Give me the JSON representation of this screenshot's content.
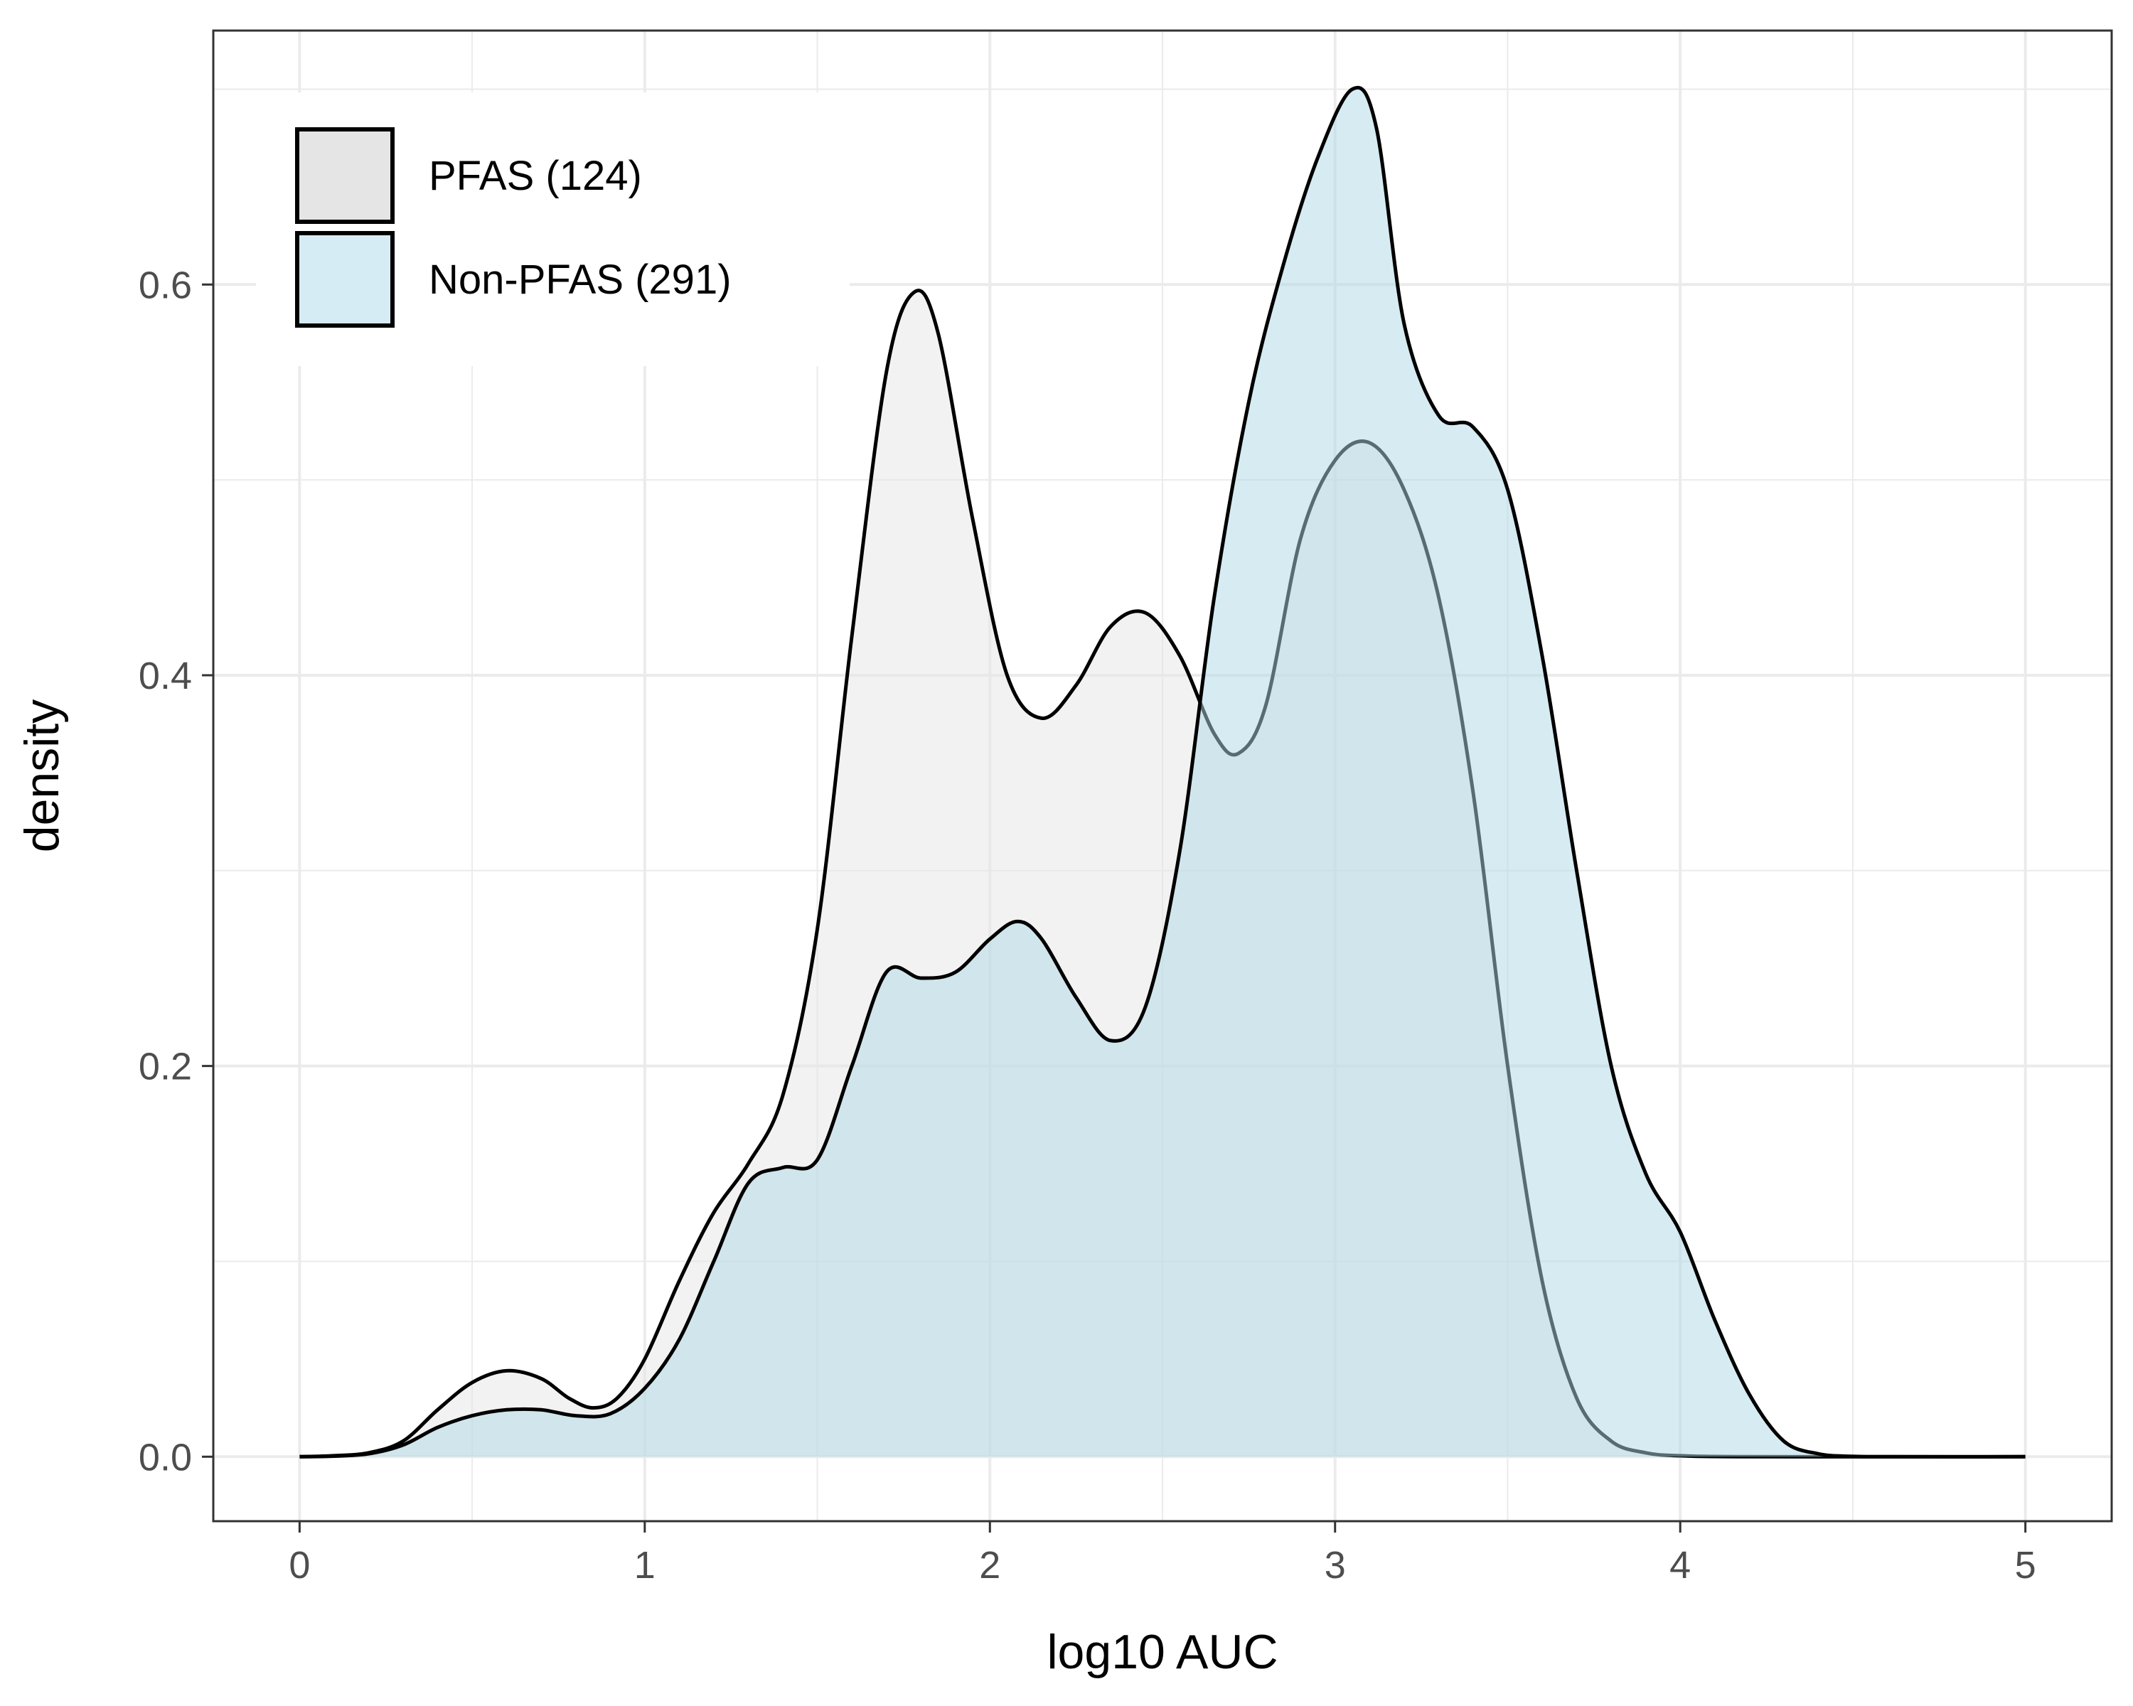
{
  "chart_data": {
    "type": "area",
    "xlabel": "log10 AUC",
    "ylabel": "density",
    "xlim": [
      -0.25,
      5.25
    ],
    "ylim": [
      -0.033,
      0.73
    ],
    "x_ticks": [
      0,
      1,
      2,
      3,
      4,
      5
    ],
    "x_tick_labels": [
      "0",
      "1",
      "2",
      "3",
      "4",
      "5"
    ],
    "y_ticks": [
      0.0,
      0.2,
      0.4,
      0.6
    ],
    "y_tick_labels": [
      "0.0",
      "0.2",
      "0.4",
      "0.6"
    ],
    "grid": true,
    "legend_position": "top-left",
    "colors": {
      "pfas_fill": "#e5e5e5",
      "nonpfas_fill": "#add8e6",
      "outline": "#000000",
      "grid": "#ebebeb",
      "panel_border": "#333333"
    },
    "series": [
      {
        "name": "PFAS (124)",
        "fill": "#e5e5e5",
        "points": [
          [
            0.0,
            0.0
          ],
          [
            0.1,
            0.0005
          ],
          [
            0.2,
            0.002
          ],
          [
            0.3,
            0.008
          ],
          [
            0.4,
            0.024
          ],
          [
            0.5,
            0.038
          ],
          [
            0.6,
            0.044
          ],
          [
            0.7,
            0.04
          ],
          [
            0.78,
            0.03
          ],
          [
            0.85,
            0.025
          ],
          [
            0.92,
            0.03
          ],
          [
            1.0,
            0.05
          ],
          [
            1.1,
            0.09
          ],
          [
            1.2,
            0.125
          ],
          [
            1.3,
            0.15
          ],
          [
            1.4,
            0.185
          ],
          [
            1.5,
            0.27
          ],
          [
            1.6,
            0.42
          ],
          [
            1.7,
            0.555
          ],
          [
            1.78,
            0.596
          ],
          [
            1.85,
            0.575
          ],
          [
            1.95,
            0.48
          ],
          [
            2.05,
            0.4
          ],
          [
            2.15,
            0.378
          ],
          [
            2.25,
            0.395
          ],
          [
            2.35,
            0.425
          ],
          [
            2.45,
            0.432
          ],
          [
            2.55,
            0.41
          ],
          [
            2.65,
            0.37
          ],
          [
            2.72,
            0.36
          ],
          [
            2.8,
            0.385
          ],
          [
            2.9,
            0.47
          ],
          [
            3.0,
            0.51
          ],
          [
            3.1,
            0.519
          ],
          [
            3.2,
            0.495
          ],
          [
            3.3,
            0.44
          ],
          [
            3.4,
            0.34
          ],
          [
            3.5,
            0.2
          ],
          [
            3.6,
            0.09
          ],
          [
            3.7,
            0.03
          ],
          [
            3.8,
            0.008
          ],
          [
            3.9,
            0.002
          ],
          [
            4.0,
            0.0005
          ],
          [
            4.2,
            0.0
          ],
          [
            5.0,
            0.0
          ]
        ]
      },
      {
        "name": "Non-PFAS (291)",
        "fill": "#add8e6",
        "points": [
          [
            0.0,
            0.0
          ],
          [
            0.1,
            0.0003
          ],
          [
            0.2,
            0.0015
          ],
          [
            0.3,
            0.006
          ],
          [
            0.4,
            0.015
          ],
          [
            0.5,
            0.021
          ],
          [
            0.6,
            0.024
          ],
          [
            0.7,
            0.024
          ],
          [
            0.8,
            0.021
          ],
          [
            0.9,
            0.022
          ],
          [
            1.0,
            0.035
          ],
          [
            1.1,
            0.06
          ],
          [
            1.2,
            0.1
          ],
          [
            1.3,
            0.14
          ],
          [
            1.4,
            0.148
          ],
          [
            1.5,
            0.152
          ],
          [
            1.6,
            0.2
          ],
          [
            1.7,
            0.248
          ],
          [
            1.8,
            0.245
          ],
          [
            1.9,
            0.248
          ],
          [
            2.0,
            0.265
          ],
          [
            2.08,
            0.274
          ],
          [
            2.15,
            0.265
          ],
          [
            2.25,
            0.235
          ],
          [
            2.35,
            0.213
          ],
          [
            2.45,
            0.23
          ],
          [
            2.55,
            0.31
          ],
          [
            2.65,
            0.44
          ],
          [
            2.75,
            0.54
          ],
          [
            2.85,
            0.61
          ],
          [
            2.95,
            0.665
          ],
          [
            3.05,
            0.7
          ],
          [
            3.12,
            0.68
          ],
          [
            3.2,
            0.58
          ],
          [
            3.3,
            0.533
          ],
          [
            3.4,
            0.527
          ],
          [
            3.5,
            0.495
          ],
          [
            3.6,
            0.41
          ],
          [
            3.7,
            0.3
          ],
          [
            3.8,
            0.2
          ],
          [
            3.9,
            0.145
          ],
          [
            4.0,
            0.115
          ],
          [
            4.1,
            0.07
          ],
          [
            4.2,
            0.032
          ],
          [
            4.3,
            0.008
          ],
          [
            4.4,
            0.0015
          ],
          [
            4.5,
            0.0002
          ],
          [
            4.6,
            0.0
          ],
          [
            5.0,
            0.0
          ]
        ]
      }
    ]
  }
}
